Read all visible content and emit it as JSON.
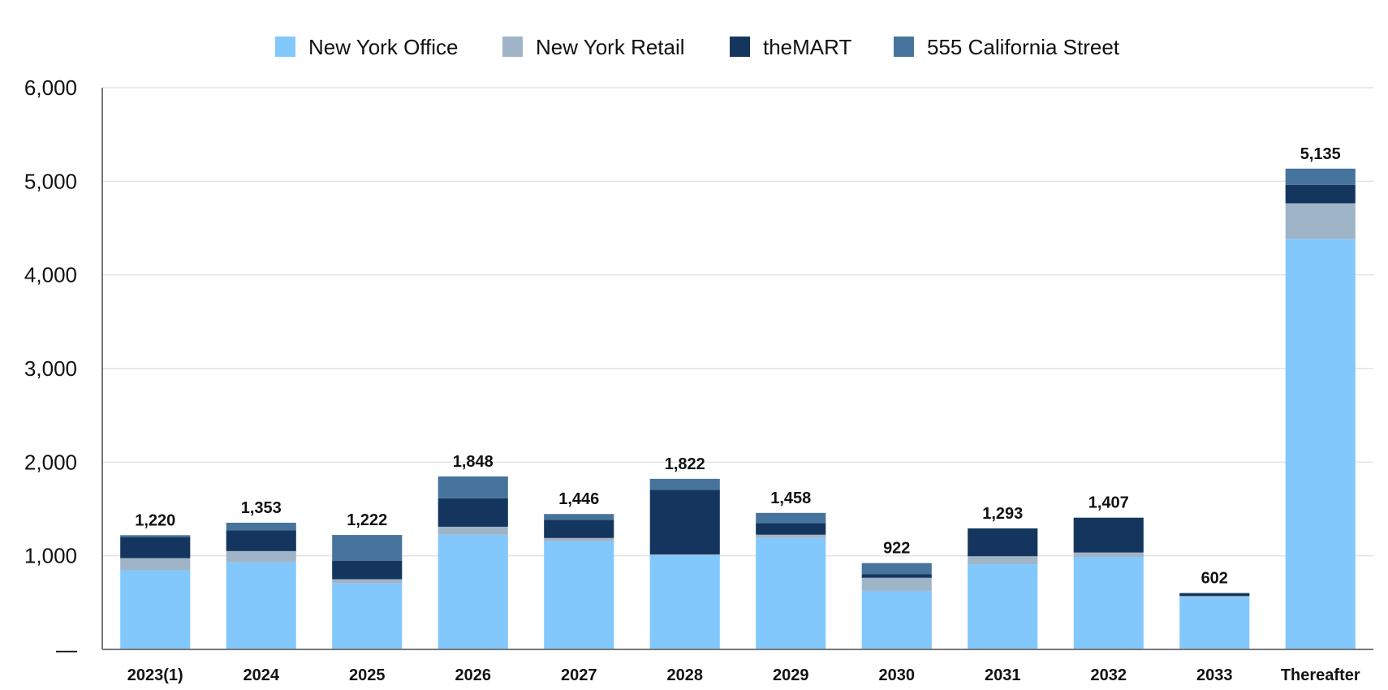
{
  "chart_data": {
    "type": "bar",
    "stacked": true,
    "categories": [
      "2023(1)",
      "2024",
      "2025",
      "2026",
      "2027",
      "2028",
      "2029",
      "2030",
      "2031",
      "2032",
      "2033",
      "Thereafter"
    ],
    "series": [
      {
        "name": "New York Office",
        "color": "#82c8fc",
        "values": [
          845,
          930,
          705,
          1225,
          1155,
          1005,
          1190,
          625,
          910,
          985,
          560,
          4385
        ]
      },
      {
        "name": "New York Retail",
        "color": "#a0b4c8",
        "values": [
          130,
          120,
          45,
          85,
          35,
          10,
          35,
          140,
          85,
          50,
          10,
          380
        ]
      },
      {
        "name": "theMART",
        "color": "#14365e",
        "values": [
          225,
          220,
          195,
          305,
          195,
          690,
          125,
          40,
          298,
          372,
          32,
          195
        ]
      },
      {
        "name": "555 California Street",
        "color": "#46749c",
        "values": [
          20,
          83,
          277,
          233,
          61,
          117,
          108,
          117,
          0,
          0,
          0,
          175
        ]
      }
    ],
    "totals": [
      "1,220",
      "1,353",
      "1,222",
      "1,848",
      "1,446",
      "1,822",
      "1,458",
      "922",
      "1,293",
      "1,407",
      "602",
      "5,135"
    ],
    "ylim": [
      0,
      6000
    ],
    "yticks": [
      {
        "value": 0,
        "label": "—"
      },
      {
        "value": 1000,
        "label": "1,000"
      },
      {
        "value": 2000,
        "label": "2,000"
      },
      {
        "value": 3000,
        "label": "3,000"
      },
      {
        "value": 4000,
        "label": "4,000"
      },
      {
        "value": 5000,
        "label": "5,000"
      },
      {
        "value": 6000,
        "label": "6,000"
      }
    ],
    "grid": true,
    "legend_position": "top-center"
  }
}
